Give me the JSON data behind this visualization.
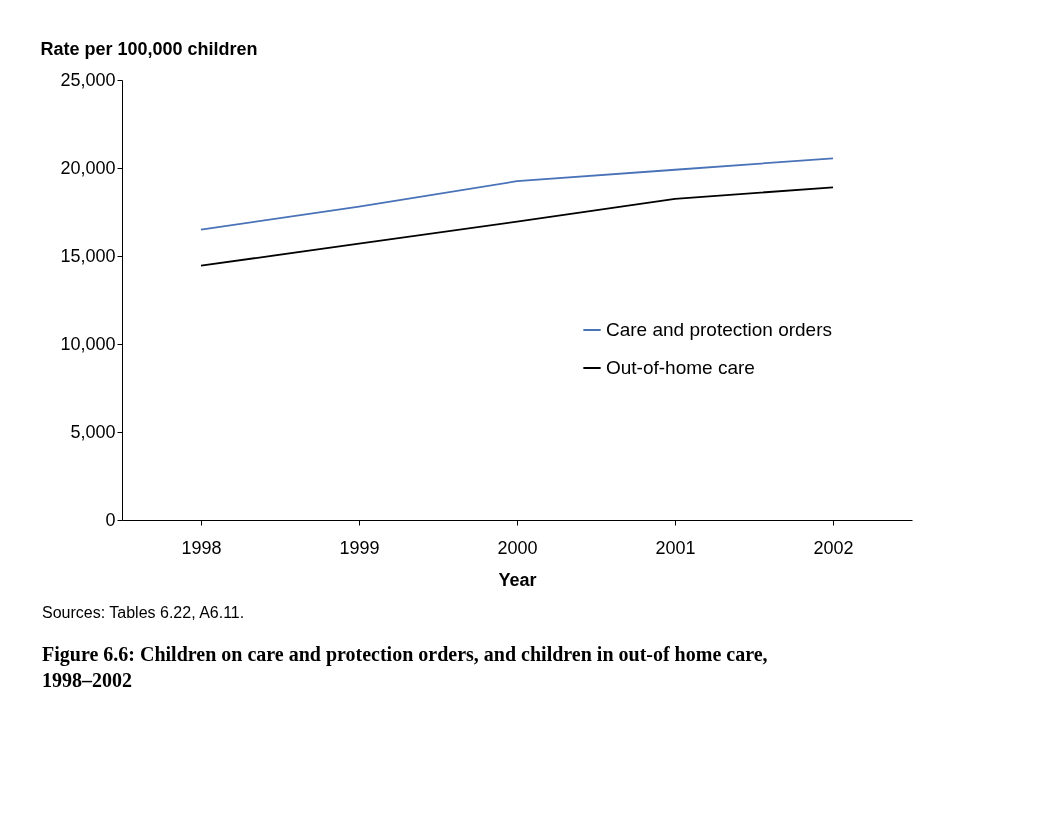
{
  "chart_data": {
    "type": "line",
    "title": "Figure 6.6: Children on care and protection orders, and children in out-of home care, 1998–2002",
    "xlabel": "Year",
    "ylabel": "Rate per 100,000 children",
    "categories": [
      "1998",
      "1999",
      "2000",
      "2001",
      "2002"
    ],
    "series": [
      {
        "name": "Care and protection orders",
        "color": "#4a72b8",
        "values": [
          16500,
          17800,
          19250,
          19900,
          20550
        ]
      },
      {
        "name": "Out-of-home care",
        "color": "#000000",
        "values": [
          14450,
          15700,
          16950,
          18250,
          18900
        ]
      }
    ],
    "ylim": [
      0,
      25000
    ],
    "yticks": [
      {
        "value": 0,
        "label": "0"
      },
      {
        "value": 5000,
        "label": "5,000"
      },
      {
        "value": 10000,
        "label": "10,000"
      },
      {
        "value": 15000,
        "label": "15,000"
      },
      {
        "value": 20000,
        "label": "20,000"
      },
      {
        "value": 25000,
        "label": "25,000"
      }
    ],
    "annotations": [
      "Sources: Tables 6.22, A6.11."
    ],
    "legend": "right",
    "grid": false,
    "marker": "none",
    "line_style": "solid"
  }
}
